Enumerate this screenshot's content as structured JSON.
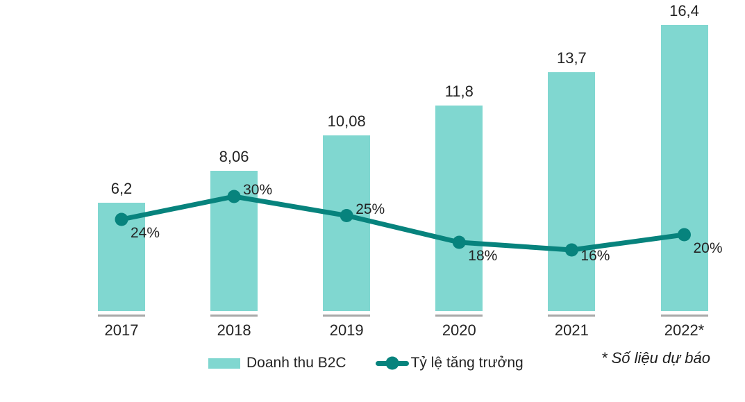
{
  "chart_data": {
    "type": "bar+line",
    "categories": [
      "2017",
      "2018",
      "2019",
      "2020",
      "2021",
      "2022*"
    ],
    "series": [
      {
        "name": "Doanh thu B2C",
        "type": "bar",
        "values": [
          6.2,
          8.06,
          10.08,
          11.8,
          13.7,
          16.4
        ],
        "value_labels": [
          "6,2",
          "8,06",
          "10,08",
          "11,8",
          "13,7",
          "16,4"
        ],
        "color": "#80d7d0"
      },
      {
        "name": "Tỷ lệ tăng trưởng",
        "type": "line",
        "values": [
          24,
          30,
          25,
          18,
          16,
          20
        ],
        "value_labels": [
          "24%",
          "30%",
          "25%",
          "18%",
          "16%",
          "20%"
        ],
        "label_side": [
          "below",
          "above",
          "above",
          "below",
          "mid",
          "below"
        ],
        "color": "#07837d"
      }
    ],
    "legend": {
      "position": "bottom",
      "items": [
        "Doanh thu B2C",
        "Tỷ lệ tăng trưởng"
      ]
    },
    "footnote": "* Số liệu dự báo",
    "grid": false,
    "y_axis_visible": false
  },
  "colors": {
    "bar": "#80d7d0",
    "line": "#07837d",
    "tick": "#a8a8a8",
    "text": "#232323"
  }
}
